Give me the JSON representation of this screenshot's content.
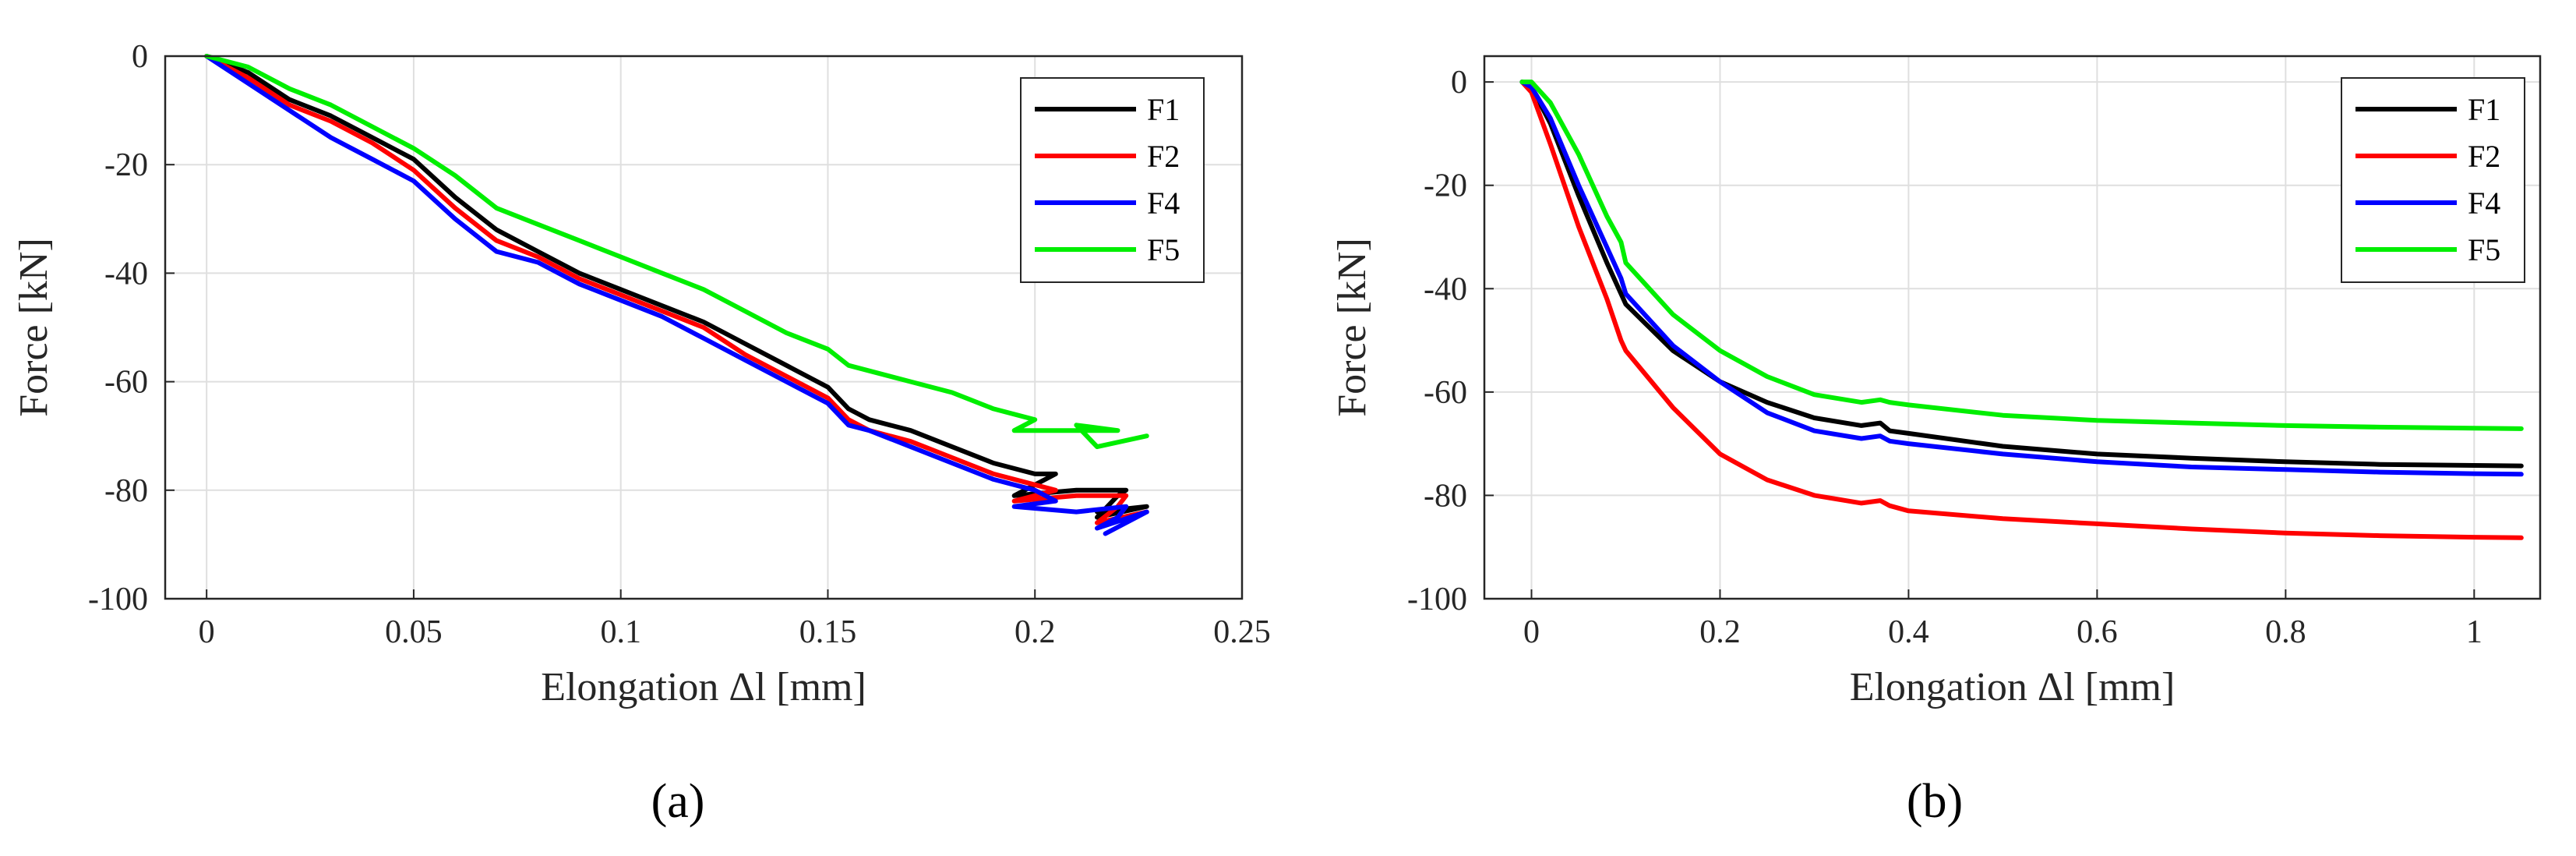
{
  "chart_data": [
    {
      "type": "line",
      "panel_label": "(a)",
      "xlabel": "Elongation Δl [mm]",
      "ylabel": "Force [kN]",
      "xlim": [
        -0.01,
        0.25
      ],
      "ylim": [
        -100,
        0
      ],
      "xticks": [
        0,
        0.05,
        0.1,
        0.15,
        0.2,
        0.25
      ],
      "xtick_labels": [
        "0",
        "0.05",
        "0.1",
        "0.15",
        "0.2",
        "0.25"
      ],
      "yticks": [
        0,
        -20,
        -40,
        -60,
        -80,
        -100
      ],
      "ytick_labels": [
        "0",
        "-20",
        "-40",
        "-60",
        "-80",
        "-100"
      ],
      "grid": true,
      "legend_position": "top-right",
      "series": [
        {
          "name": "F1",
          "color": "#000000",
          "x": [
            0,
            0.01,
            0.02,
            0.03,
            0.04,
            0.05,
            0.06,
            0.07,
            0.08,
            0.09,
            0.1,
            0.11,
            0.12,
            0.13,
            0.14,
            0.15,
            0.155,
            0.16,
            0.17,
            0.18,
            0.19,
            0.2,
            0.205,
            0.195,
            0.21,
            0.222,
            0.22,
            0.215,
            0.227,
            0.215
          ],
          "y": [
            0,
            -3,
            -8,
            -11,
            -15,
            -19,
            -26,
            -32,
            -36,
            -40,
            -43,
            -46,
            -49,
            -53,
            -57,
            -61,
            -65,
            -67,
            -69,
            -72,
            -75,
            -77,
            -77,
            -81,
            -80,
            -80,
            -81,
            -85,
            -83,
            -84
          ]
        },
        {
          "name": "F2",
          "color": "#ff0000",
          "x": [
            0,
            0.01,
            0.02,
            0.03,
            0.04,
            0.05,
            0.06,
            0.07,
            0.08,
            0.09,
            0.1,
            0.11,
            0.12,
            0.13,
            0.14,
            0.15,
            0.155,
            0.16,
            0.17,
            0.18,
            0.19,
            0.2,
            0.205,
            0.195,
            0.21,
            0.222,
            0.22,
            0.215,
            0.227,
            0.215
          ],
          "y": [
            0,
            -4,
            -9,
            -12,
            -16,
            -21,
            -28,
            -34,
            -37,
            -41,
            -44,
            -47,
            -50,
            -55,
            -59,
            -63,
            -67,
            -69,
            -71,
            -74,
            -77,
            -79,
            -80,
            -82,
            -81,
            -81,
            -83,
            -86,
            -84,
            -86
          ]
        },
        {
          "name": "F4",
          "color": "#0000ff",
          "x": [
            0,
            0.01,
            0.02,
            0.03,
            0.035,
            0.04,
            0.05,
            0.06,
            0.07,
            0.08,
            0.09,
            0.1,
            0.11,
            0.12,
            0.13,
            0.14,
            0.15,
            0.155,
            0.16,
            0.17,
            0.18,
            0.19,
            0.2,
            0.205,
            0.195,
            0.21,
            0.222,
            0.22,
            0.215,
            0.227,
            0.217
          ],
          "y": [
            0,
            -5,
            -10,
            -15,
            -17,
            -19,
            -23,
            -30,
            -36,
            -38,
            -42,
            -45,
            -48,
            -52,
            -56,
            -60,
            -64,
            -68,
            -69,
            -72,
            -75,
            -78,
            -80,
            -82,
            -83,
            -84,
            -83,
            -85,
            -87,
            -84,
            -88
          ]
        },
        {
          "name": "F5",
          "color": "#00ee00",
          "x": [
            0,
            0.01,
            0.02,
            0.03,
            0.04,
            0.05,
            0.06,
            0.07,
            0.08,
            0.09,
            0.1,
            0.11,
            0.12,
            0.13,
            0.14,
            0.15,
            0.155,
            0.16,
            0.17,
            0.18,
            0.19,
            0.2,
            0.195,
            0.22,
            0.21,
            0.215,
            0.227
          ],
          "y": [
            0,
            -2,
            -6,
            -9,
            -13,
            -17,
            -22,
            -28,
            -31,
            -34,
            -37,
            -40,
            -43,
            -47,
            -51,
            -54,
            -57,
            -58,
            -60,
            -62,
            -65,
            -67,
            -69,
            -69,
            -68,
            -72,
            -70
          ]
        }
      ]
    },
    {
      "type": "line",
      "panel_label": "(b)",
      "xlabel": "Elongation Δl  [mm]",
      "ylabel": "Force [kN]",
      "xlim": [
        -0.05,
        1.07
      ],
      "ylim": [
        -100,
        5
      ],
      "xticks": [
        0,
        0.2,
        0.4,
        0.6,
        0.8,
        1
      ],
      "xtick_labels": [
        "0",
        "0.2",
        "0.4",
        "0.6",
        "0.8",
        "1"
      ],
      "yticks": [
        0,
        -20,
        -40,
        -60,
        -80,
        -100
      ],
      "ytick_labels": [
        "0",
        "-20",
        "-40",
        "-60",
        "-80",
        "-100"
      ],
      "grid": true,
      "legend_position": "top-right",
      "series": [
        {
          "name": "F1",
          "color": "#000000",
          "x": [
            -0.01,
            0,
            0.02,
            0.05,
            0.08,
            0.1,
            0.15,
            0.2,
            0.25,
            0.3,
            0.35,
            0.37,
            0.38,
            0.4,
            0.5,
            0.6,
            0.7,
            0.8,
            0.9,
            1.0,
            1.05
          ],
          "y": [
            0,
            -1,
            -8,
            -22,
            -35,
            -43,
            -52,
            -58,
            -62,
            -65,
            -66.5,
            -66,
            -67.5,
            -68,
            -70.5,
            -72,
            -72.8,
            -73.5,
            -74,
            -74.2,
            -74.3
          ]
        },
        {
          "name": "F2",
          "color": "#ff0000",
          "x": [
            -0.01,
            0,
            0.02,
            0.05,
            0.08,
            0.095,
            0.1,
            0.15,
            0.2,
            0.25,
            0.3,
            0.35,
            0.37,
            0.38,
            0.4,
            0.5,
            0.6,
            0.7,
            0.8,
            0.9,
            1.0,
            1.05
          ],
          "y": [
            0,
            -2,
            -12,
            -28,
            -42,
            -50,
            -52,
            -63,
            -72,
            -77,
            -80,
            -81.5,
            -81,
            -82,
            -83,
            -84.5,
            -85.5,
            -86.5,
            -87.3,
            -87.8,
            -88.1,
            -88.2
          ]
        },
        {
          "name": "F4",
          "color": "#0000ff",
          "x": [
            -0.01,
            0,
            0.02,
            0.05,
            0.08,
            0.095,
            0.1,
            0.15,
            0.2,
            0.25,
            0.3,
            0.35,
            0.37,
            0.38,
            0.4,
            0.5,
            0.6,
            0.7,
            0.8,
            0.9,
            1.0,
            1.05
          ],
          "y": [
            0,
            -1,
            -7,
            -20,
            -32,
            -38,
            -41,
            -51,
            -58,
            -64,
            -67.5,
            -69,
            -68.5,
            -69.5,
            -70,
            -72,
            -73.5,
            -74.5,
            -75,
            -75.5,
            -75.8,
            -75.9
          ]
        },
        {
          "name": "F5",
          "color": "#00ee00",
          "x": [
            -0.01,
            0,
            0.02,
            0.05,
            0.08,
            0.095,
            0.1,
            0.15,
            0.2,
            0.25,
            0.3,
            0.35,
            0.37,
            0.38,
            0.4,
            0.5,
            0.6,
            0.7,
            0.8,
            0.9,
            1.0,
            1.05
          ],
          "y": [
            0,
            0,
            -4,
            -14,
            -26,
            -31,
            -35,
            -45,
            -52,
            -57,
            -60.5,
            -62,
            -61.5,
            -62,
            -62.5,
            -64.5,
            -65.5,
            -66,
            -66.5,
            -66.8,
            -67,
            -67.1
          ]
        }
      ]
    }
  ]
}
